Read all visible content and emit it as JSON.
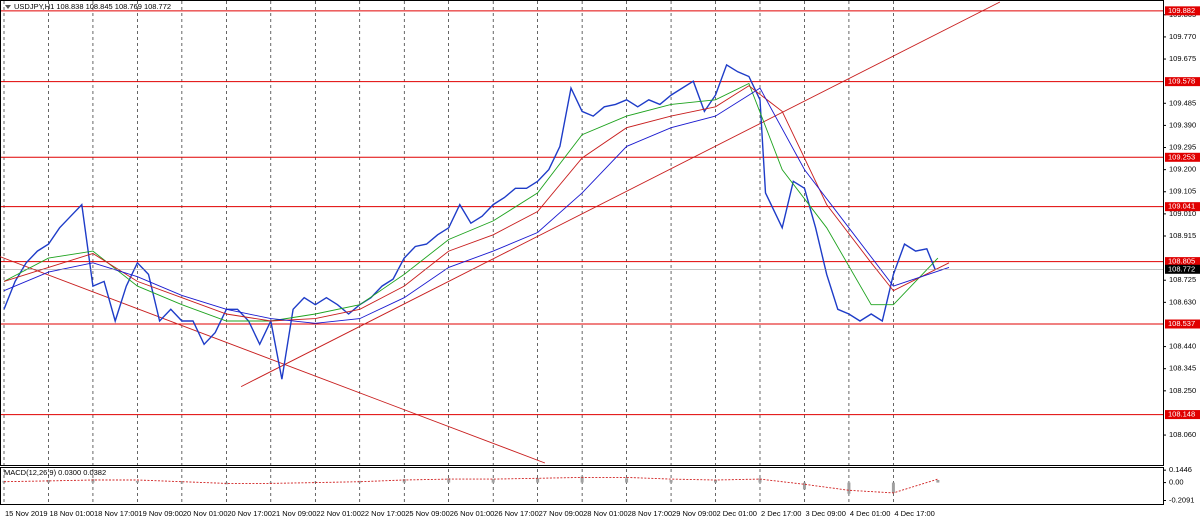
{
  "header": {
    "symbol_info": "USDJPY,H1  108.838 108.845 108.769 108.772"
  },
  "chart_data": [
    {
      "type": "line",
      "xlim": [
        -1.44,
        417
      ],
      "ylim": [
        107.94,
        109.92
      ],
      "xticks": [
        {
          "value": 0,
          "label": "15 Nov 2019"
        },
        {
          "value": 16,
          "label": "18 Nov 01:00"
        },
        {
          "value": 32,
          "label": "18 Nov 17:00"
        },
        {
          "value": 48,
          "label": "19 Nov 09:00"
        },
        {
          "value": 64,
          "label": "20 Nov 01:00"
        },
        {
          "value": 80,
          "label": "20 Nov 17:00"
        },
        {
          "value": 96,
          "label": "21 Nov 09:00"
        },
        {
          "value": 112,
          "label": "22 Nov 01:00"
        },
        {
          "value": 128,
          "label": "22 Nov 17:00"
        },
        {
          "value": 144,
          "label": "25 Nov 09:00"
        },
        {
          "value": 160,
          "label": "26 Nov 01:00"
        },
        {
          "value": 176,
          "label": "26 Nov 17:00"
        },
        {
          "value": 192,
          "label": "27 Nov 09:00"
        },
        {
          "value": 208,
          "label": "28 Nov 01:00"
        },
        {
          "value": 224,
          "label": "28 Nov 17:00"
        },
        {
          "value": 240,
          "label": "29 Nov 09:00"
        },
        {
          "value": 256,
          "label": "2 Dec 01:00"
        },
        {
          "value": 272,
          "label": "2 Dec 17:00"
        },
        {
          "value": 288,
          "label": "3 Dec 09:00"
        },
        {
          "value": 304,
          "label": "4 Dec 01:00"
        },
        {
          "value": 320,
          "label": "4 Dec 17:00"
        }
      ],
      "yticks": [
        109.865,
        {
          "value": 109.77,
          "label": "109.770"
        },
        109.675,
        109.485,
        {
          "value": 109.39,
          "label": "109.390"
        },
        109.295,
        {
          "value": 109.2,
          "label": "109.200"
        },
        109.105,
        {
          "value": 109.01,
          "label": "109.010"
        },
        108.915,
        108.725,
        {
          "value": 108.63,
          "label": "108.630"
        },
        {
          "value": 108.44,
          "label": "108.440"
        },
        108.345,
        {
          "value": 108.25,
          "label": "108.250"
        },
        {
          "value": 108.06,
          "label": "108.060"
        }
      ],
      "series": [
        {
          "color": "#1e3cc8",
          "x": [
            0,
            4,
            8,
            12,
            16,
            20,
            24,
            28,
            32,
            36,
            40,
            44,
            48,
            52,
            56,
            60,
            64,
            68,
            72,
            76,
            80,
            84,
            88,
            92,
            96,
            100,
            104,
            108,
            112,
            116,
            120,
            124,
            128,
            132,
            136,
            140,
            144,
            148,
            152,
            156,
            160,
            164,
            168,
            172,
            176,
            180,
            184,
            188,
            192,
            196,
            200,
            204,
            208,
            212,
            216,
            220,
            224,
            228,
            232,
            236,
            240,
            244,
            248,
            252,
            256,
            260,
            264,
            268,
            272,
            274,
            276,
            280,
            284,
            288,
            292,
            296,
            300,
            304,
            308,
            312,
            316,
            320,
            324,
            328,
            332,
            335
          ],
          "values": [
            108.6,
            108.72,
            108.8,
            108.85,
            108.88,
            108.95,
            109.0,
            109.05,
            108.7,
            108.72,
            108.55,
            108.7,
            108.8,
            108.75,
            108.55,
            108.6,
            108.55,
            108.55,
            108.45,
            108.5,
            108.6,
            108.6,
            108.55,
            108.45,
            108.55,
            108.3,
            108.6,
            108.65,
            108.62,
            108.65,
            108.62,
            108.58,
            108.62,
            108.65,
            108.7,
            108.73,
            108.82,
            108.87,
            108.88,
            108.92,
            108.95,
            109.05,
            108.97,
            109.0,
            109.05,
            109.08,
            109.12,
            109.12,
            109.15,
            109.2,
            109.3,
            109.55,
            109.45,
            109.43,
            109.47,
            109.48,
            109.5,
            109.47,
            109.5,
            109.48,
            109.52,
            109.55,
            109.58,
            109.45,
            109.52,
            109.65,
            109.62,
            109.6,
            109.5,
            109.1,
            109.05,
            108.95,
            109.15,
            109.12,
            108.95,
            108.75,
            108.6,
            108.58,
            108.55,
            108.58,
            108.55,
            108.75,
            108.88,
            108.85,
            108.86,
            108.772
          ]
        },
        {
          "color": "#1fa31f",
          "x": [
            0,
            16,
            32,
            48,
            64,
            80,
            96,
            112,
            128,
            144,
            160,
            176,
            192,
            208,
            224,
            240,
            256,
            268,
            280,
            296,
            312,
            320,
            336
          ],
          "values": [
            108.72,
            108.82,
            108.85,
            108.7,
            108.62,
            108.55,
            108.55,
            108.58,
            108.62,
            108.75,
            108.9,
            108.98,
            109.1,
            109.35,
            109.43,
            109.48,
            109.5,
            109.57,
            109.2,
            108.95,
            108.62,
            108.62,
            108.82
          ]
        },
        {
          "color": "#c81e1e",
          "x": [
            0,
            16,
            32,
            48,
            64,
            80,
            96,
            112,
            128,
            144,
            160,
            176,
            192,
            208,
            224,
            240,
            256,
            268,
            280,
            296,
            312,
            320,
            340
          ],
          "values": [
            108.72,
            108.78,
            108.84,
            108.72,
            108.65,
            108.58,
            108.55,
            108.56,
            108.6,
            108.7,
            108.85,
            108.92,
            109.02,
            109.25,
            109.38,
            109.43,
            109.47,
            109.56,
            109.45,
            109.05,
            108.8,
            108.68,
            108.8
          ]
        },
        {
          "color": "#1a1ad0",
          "x": [
            0,
            16,
            32,
            48,
            64,
            80,
            96,
            112,
            128,
            144,
            160,
            176,
            192,
            208,
            224,
            240,
            256,
            272,
            288,
            304,
            320,
            340
          ],
          "values": [
            108.68,
            108.76,
            108.8,
            108.74,
            108.66,
            108.6,
            108.56,
            108.54,
            108.56,
            108.65,
            108.78,
            108.85,
            108.93,
            109.1,
            109.3,
            109.38,
            109.43,
            109.55,
            109.2,
            108.95,
            108.7,
            108.78
          ]
        }
      ],
      "levels": {
        "color": "#e00000",
        "values": [
          109.882,
          109.578,
          109.253,
          109.041,
          108.805,
          108.537,
          108.148
        ]
      },
      "current_price": 108.772,
      "trendlines": [
        {
          "color": "#c81e1e",
          "x": [
            -1.44,
            194.6
          ],
          "values": [
            108.826,
            107.94
          ]
        },
        {
          "color": "#c81e1e",
          "x": [
            85.3,
            358.3
          ],
          "values": [
            108.268,
            109.92
          ]
        }
      ]
    },
    {
      "type": "macd",
      "label": "MACD(12,26,9) 0.0300 0.0382",
      "ylim": [
        -0.25,
        0.17
      ],
      "yticks": [
        0.1446,
        {
          "value": 0,
          "label": "0.00"
        },
        -0.2091
      ],
      "x": [
        0,
        16,
        32,
        48,
        64,
        80,
        96,
        112,
        128,
        144,
        160,
        176,
        192,
        208,
        224,
        240,
        256,
        272,
        288,
        304,
        320,
        336
      ],
      "histogram": {
        "color": "#a0a0a0",
        "values": [
          0.02,
          0.03,
          0.04,
          0.02,
          -0.01,
          -0.02,
          -0.01,
          0.01,
          0.02,
          0.04,
          0.05,
          0.04,
          0.05,
          0.07,
          0.05,
          0.03,
          0.03,
          0.05,
          -0.08,
          -0.13,
          -0.12,
          0.03
        ]
      },
      "signal": {
        "color": "#d02020",
        "values": [
          0.01,
          0.02,
          0.03,
          0.03,
          0.01,
          -0.01,
          -0.01,
          0.0,
          0.01,
          0.03,
          0.04,
          0.04,
          0.05,
          0.06,
          0.06,
          0.04,
          0.03,
          0.04,
          -0.02,
          -0.09,
          -0.12,
          0.04
        ]
      }
    }
  ]
}
